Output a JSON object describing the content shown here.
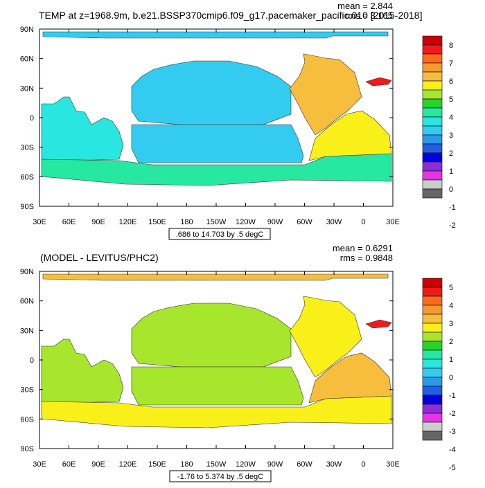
{
  "chart_data": [
    {
      "type": "heatmap",
      "title": "TEMP at z=1968.9m, b.e21.BSSP370cmip6.f09_g17.pacemaker_pacific.010 [2015-2018]",
      "stats": {
        "mean": "mean = 2.844",
        "rms": "rms = 3.165"
      },
      "contour_info": ".686 to 14.703 by .5 degC",
      "x_ticks": [
        "30E",
        "60E",
        "90E",
        "120E",
        "150E",
        "180",
        "150W",
        "120W",
        "90W",
        "60W",
        "30W",
        "0",
        "30E"
      ],
      "y_ticks": [
        "90N",
        "60N",
        "30N",
        "0",
        "30S",
        "60S",
        "90S"
      ],
      "xlim": [
        30,
        390
      ],
      "ylim": [
        -90,
        90
      ],
      "colorbar": {
        "labels": [
          "8",
          "7",
          "6",
          "5",
          "4",
          "3",
          "2",
          "1",
          "0",
          "-1",
          "-2"
        ],
        "colors": [
          "#cc0000",
          "#f01a1a",
          "#ff6a1a",
          "#f59a30",
          "#f7bd3c",
          "#f8f018",
          "#a8e62e",
          "#26d426",
          "#26e8a0",
          "#29e6e0",
          "#33ccf0",
          "#2b9ae8",
          "#1f5ee8",
          "#0000e0",
          "#8f2bd9",
          "#e633e6",
          "#cccccc",
          "#666666"
        ]
      },
      "regions": [
        {
          "name": "arctic",
          "color": "#33ccf0"
        },
        {
          "name": "indian",
          "color": "#29e6e0"
        },
        {
          "name": "north-pacific",
          "color": "#33ccf0"
        },
        {
          "name": "south-pacific",
          "color": "#33ccf0"
        },
        {
          "name": "southern-ocean",
          "color": "#26e8a0"
        },
        {
          "name": "atlantic-north",
          "color": "#f7bd3c"
        },
        {
          "name": "atlantic-south",
          "color": "#f8f018"
        },
        {
          "name": "mediterranean",
          "color": "#f01a1a"
        }
      ]
    },
    {
      "type": "heatmap",
      "title": "(MODEL - LEVITUS/PHC2)",
      "stats": {
        "mean": "mean = 0.6291",
        "rms": "rms = 0.9848"
      },
      "contour_info": "-1.76 to 5.374 by .5 degC",
      "x_ticks": [
        "30E",
        "60E",
        "90E",
        "120E",
        "150E",
        "180",
        "150W",
        "120W",
        "90W",
        "60W",
        "30W",
        "0",
        "30E"
      ],
      "y_ticks": [
        "90N",
        "60N",
        "30N",
        "0",
        "30S",
        "60S",
        "90S"
      ],
      "xlim": [
        30,
        390
      ],
      "ylim": [
        -90,
        90
      ],
      "colorbar": {
        "labels": [
          "5",
          "4",
          "3",
          "2",
          "1",
          "0",
          "-1",
          "-2",
          "-3",
          "-4",
          "-5"
        ],
        "colors": [
          "#cc0000",
          "#f01a1a",
          "#ff6a1a",
          "#f59a30",
          "#f7bd3c",
          "#f8f018",
          "#a8e62e",
          "#26d426",
          "#26e8a0",
          "#29e6e0",
          "#33ccf0",
          "#2b9ae8",
          "#1f5ee8",
          "#0000e0",
          "#8f2bd9",
          "#e633e6",
          "#cccccc",
          "#666666"
        ]
      },
      "regions": [
        {
          "name": "arctic",
          "color": "#f7bd3c"
        },
        {
          "name": "indian",
          "color": "#a8e62e"
        },
        {
          "name": "north-pacific",
          "color": "#a8e62e"
        },
        {
          "name": "south-pacific",
          "color": "#a8e62e"
        },
        {
          "name": "southern-ocean",
          "color": "#f8f018"
        },
        {
          "name": "atlantic-north",
          "color": "#f8f018"
        },
        {
          "name": "atlantic-south",
          "color": "#f7bd3c"
        },
        {
          "name": "mediterranean",
          "color": "#f01a1a"
        }
      ]
    }
  ]
}
